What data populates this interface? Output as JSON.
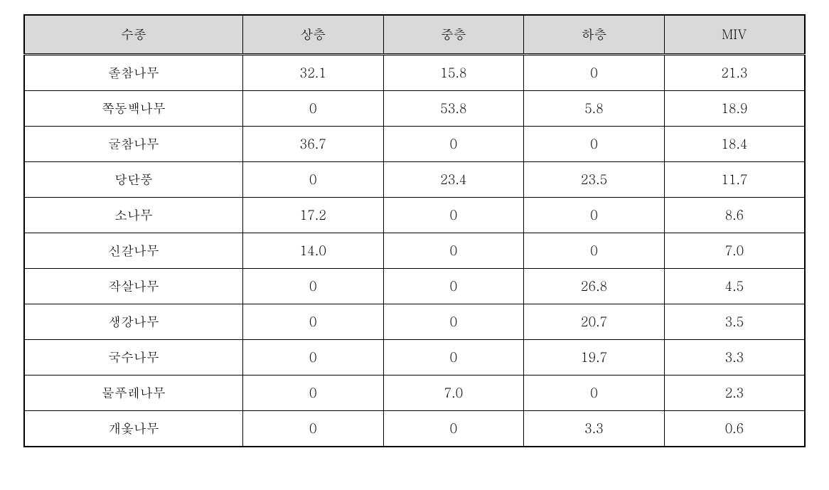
{
  "table": {
    "type": "table",
    "columns": [
      "수종",
      "상층",
      "중층",
      "하층",
      "MIV"
    ],
    "column_widths": [
      "28%",
      "18%",
      "18%",
      "18%",
      "18%"
    ],
    "header_bg": "#d9d9d9",
    "border_color": "#000000",
    "background_color": "#ffffff",
    "text_color": "#000000",
    "font_size": 18,
    "rows": [
      [
        "졸참나무",
        "32.1",
        "15.8",
        "0",
        "21.3"
      ],
      [
        "쪽동백나무",
        "0",
        "53.8",
        "5.8",
        "18.9"
      ],
      [
        "굴참나무",
        "36.7",
        "0",
        "0",
        "18.4"
      ],
      [
        "당단풍",
        "0",
        "23.4",
        "23.5",
        "11.7"
      ],
      [
        "소나무",
        "17.2",
        "0",
        "0",
        "8.6"
      ],
      [
        "신갈나무",
        "14.0",
        "0",
        "0",
        "7.0"
      ],
      [
        "작살나무",
        "0",
        "0",
        "26.8",
        "4.5"
      ],
      [
        "생강나무",
        "0",
        "0",
        "20.7",
        "3.5"
      ],
      [
        "국수나무",
        "0",
        "0",
        "19.7",
        "3.3"
      ],
      [
        "물푸레나무",
        "0",
        "7.0",
        "0",
        "2.3"
      ],
      [
        "개옻나무",
        "0",
        "0",
        "3.3",
        "0.6"
      ]
    ]
  }
}
